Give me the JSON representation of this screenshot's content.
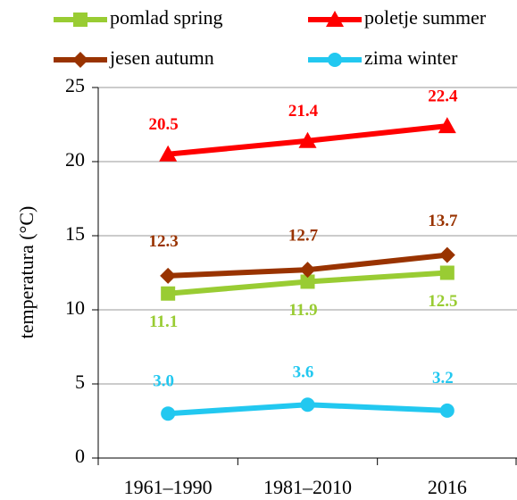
{
  "chart_data": {
    "type": "line",
    "y_label": "temperatura (°C)",
    "categories": [
      "1961–1990",
      "1981–2010",
      "2016"
    ],
    "series": [
      {
        "name": "pomlad spring",
        "color": "#99cc33",
        "marker": "square",
        "values": [
          11.1,
          11.9,
          12.5
        ]
      },
      {
        "name": "poletje summer",
        "color": "#ff0000",
        "marker": "triangle",
        "values": [
          20.5,
          21.4,
          22.4
        ]
      },
      {
        "name": "jesen autumn",
        "color": "#993300",
        "marker": "diamond",
        "values": [
          12.3,
          12.7,
          13.7
        ]
      },
      {
        "name": "zima winter",
        "color": "#22c8f0",
        "marker": "circle",
        "values": [
          3.0,
          3.6,
          3.2
        ],
        "value_labels": [
          "3.0",
          "3.6",
          "3.2"
        ]
      }
    ],
    "ylim": [
      0,
      25
    ],
    "yticks": [
      0,
      5,
      10,
      15,
      20,
      25
    ],
    "grid": true
  }
}
